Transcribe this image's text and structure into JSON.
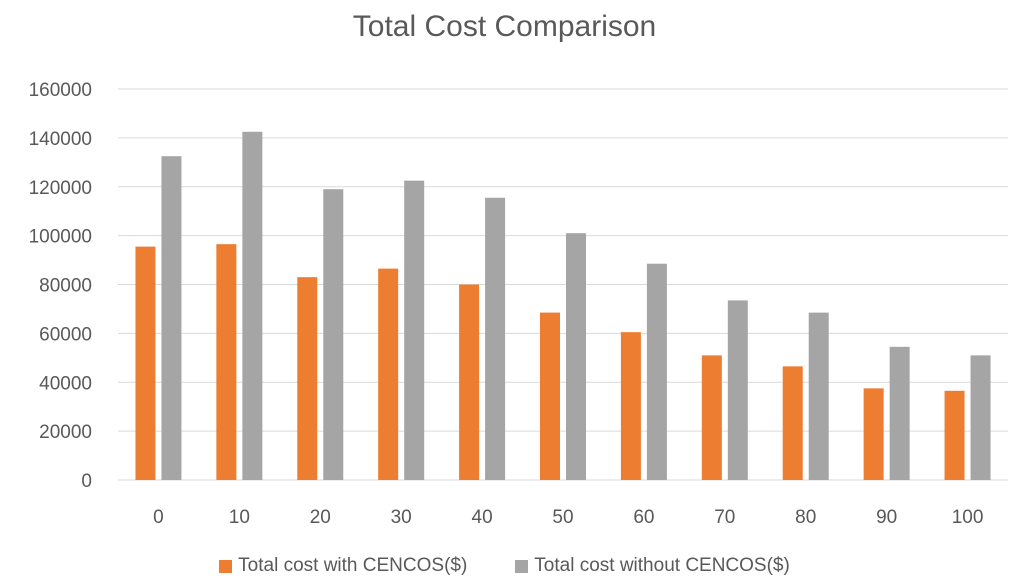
{
  "chart_data": {
    "type": "bar",
    "title": "Total Cost Comparison",
    "xlabel": "",
    "ylabel": "",
    "categories": [
      "0",
      "10",
      "20",
      "30",
      "40",
      "50",
      "60",
      "70",
      "80",
      "90",
      "100"
    ],
    "series": [
      {
        "name": "Total cost with CENCOS($)",
        "color": "#ED7D31",
        "values": [
          95500,
          96500,
          83000,
          86500,
          80000,
          68500,
          60500,
          51000,
          46500,
          37500,
          36500
        ]
      },
      {
        "name": "Total cost without CENCOS($)",
        "color": "#A5A5A5",
        "values": [
          132500,
          142500,
          119000,
          122500,
          115500,
          101000,
          88500,
          73500,
          68500,
          54500,
          51000
        ]
      }
    ],
    "yticks": [
      "0",
      "20000",
      "40000",
      "60000",
      "80000",
      "100000",
      "120000",
      "140000",
      "160000"
    ],
    "ylim": [
      0,
      160000
    ],
    "grid": true,
    "legend_position": "bottom",
    "gridline_color": "#D9D9D9"
  }
}
